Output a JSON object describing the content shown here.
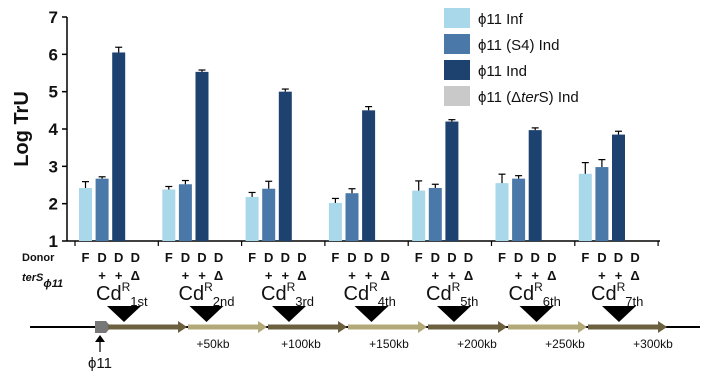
{
  "chart_data": {
    "type": "bar",
    "ylabel": "Log TrU",
    "ylim": [
      1,
      7
    ],
    "yticks": [
      1,
      2,
      3,
      4,
      5,
      6,
      7
    ],
    "grid": false,
    "legend_position": "top-right",
    "group_count": 7,
    "series": [
      {
        "name": "ϕ11 Inf",
        "color": "#a8d8ea",
        "values": [
          2.42,
          2.38,
          2.18,
          2.02,
          2.35,
          2.55,
          2.8
        ],
        "errors": [
          0.17,
          0.08,
          0.12,
          0.12,
          0.26,
          0.24,
          0.3
        ]
      },
      {
        "name": "ϕ11 (S4) Ind",
        "color": "#4a78a8",
        "values": [
          2.67,
          2.52,
          2.4,
          2.28,
          2.42,
          2.67,
          2.98
        ],
        "errors": [
          0.05,
          0.1,
          0.2,
          0.12,
          0.1,
          0.08,
          0.2
        ]
      },
      {
        "name": "ϕ11 Ind",
        "color": "#1e4270",
        "values": [
          6.05,
          5.53,
          5.0,
          4.5,
          4.2,
          3.97,
          3.85
        ],
        "errors": [
          0.14,
          0.05,
          0.07,
          0.1,
          0.05,
          0.06,
          0.09
        ]
      },
      {
        "name": "ϕ11 (ΔterS) Ind",
        "color": "#c9c9c9",
        "values": [
          0,
          0,
          0,
          0,
          0,
          0,
          0
        ],
        "errors": [
          0,
          0,
          0,
          0,
          0,
          0,
          0
        ]
      }
    ],
    "legend_labels": [
      {
        "pre": "ϕ11 Inf",
        "ital": "",
        "post": ""
      },
      {
        "pre": "ϕ11 (S4) Ind",
        "ital": "",
        "post": ""
      },
      {
        "pre": "ϕ11 Ind",
        "ital": "",
        "post": ""
      },
      {
        "pre": "ϕ11 (Δ",
        "ital": "ter",
        "post": "S) Ind"
      }
    ],
    "row_labels": {
      "donor": "Donor",
      "ters_main": "terS",
      "ters_sub": "ϕ11"
    },
    "donor_codes": [
      "F",
      "D",
      "D",
      "D"
    ],
    "ters_codes": [
      "",
      "+",
      "+",
      "Δ"
    ],
    "cd_markers": [
      {
        "main": "Cd",
        "sup": "R",
        "sub": "1st"
      },
      {
        "main": "Cd",
        "sup": "R",
        "sub": "2nd"
      },
      {
        "main": "Cd",
        "sup": "R",
        "sub": "3rd"
      },
      {
        "main": "Cd",
        "sup": "R",
        "sub": "4th"
      },
      {
        "main": "Cd",
        "sup": "R",
        "sub": "5th"
      },
      {
        "main": "Cd",
        "sup": "R",
        "sub": "6th"
      },
      {
        "main": "Cd",
        "sup": "R",
        "sub": "7th"
      }
    ],
    "arrow_colors": [
      "#6b6140",
      "#b3a878",
      "#6b6140",
      "#b3a878",
      "#6b6140",
      "#b3a878",
      "#6b6140"
    ],
    "kb_labels": [
      "+50kb",
      "+100kb",
      "+150kb",
      "+200kb",
      "+250kb",
      "+300kb"
    ],
    "phage_label": "ϕ11"
  }
}
